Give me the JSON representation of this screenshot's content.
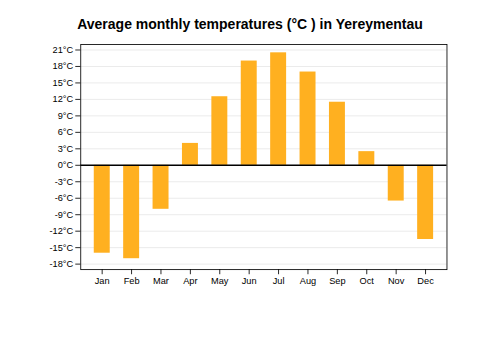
{
  "chart_data": {
    "type": "bar",
    "title": "Average monthly temperatures (°C ) in Yereymentau",
    "categories": [
      "Jan",
      "Feb",
      "Mar",
      "Apr",
      "May",
      "Jun",
      "Jul",
      "Aug",
      "Sep",
      "Oct",
      "Nov",
      "Dec"
    ],
    "values": [
      -16,
      -17,
      -8,
      4,
      12.5,
      19,
      20.5,
      17,
      11.5,
      2.5,
      -6.5,
      -13.5
    ],
    "color": "#FFB020",
    "ylim": [
      -19,
      22
    ],
    "yticks": [
      {
        "value": -18,
        "label": "-18°C"
      },
      {
        "value": -15,
        "label": "-15°C"
      },
      {
        "value": -12,
        "label": "-12°C"
      },
      {
        "value": -9,
        "label": "-9°C"
      },
      {
        "value": -6,
        "label": "-6°C"
      },
      {
        "value": -3,
        "label": "-3°C"
      },
      {
        "value": 0,
        "label": "0°C"
      },
      {
        "value": 3,
        "label": "3°C"
      },
      {
        "value": 6,
        "label": "6°C"
      },
      {
        "value": 9,
        "label": "9°C"
      },
      {
        "value": 12,
        "label": "12°C"
      },
      {
        "value": 15,
        "label": "15°C"
      },
      {
        "value": 18,
        "label": "18°C"
      },
      {
        "value": 21,
        "label": "21°C"
      }
    ],
    "grid": true
  }
}
